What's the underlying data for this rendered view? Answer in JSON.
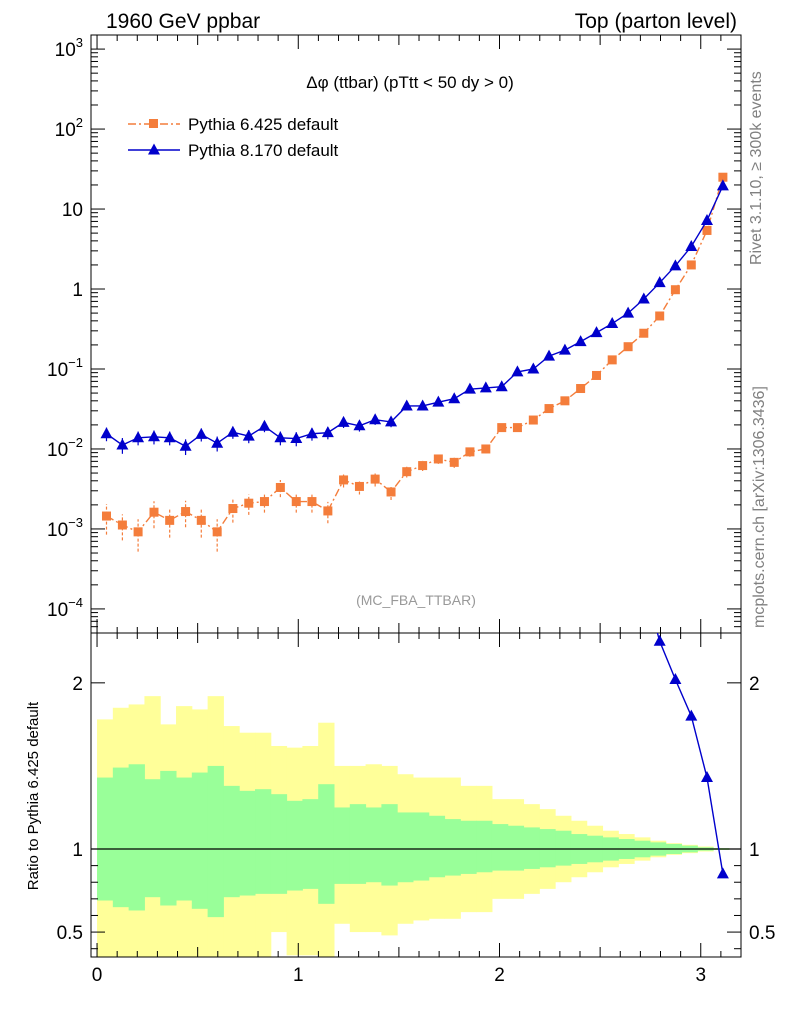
{
  "header": {
    "left": "1960 GeV ppbar",
    "right": "Top (parton level)"
  },
  "side_labels": {
    "rivet": "Rivet 3.1.10, ≥ 300k events",
    "mcplots": "mcplots.cern.ch [arXiv:1306.3436]"
  },
  "chart_data": [
    {
      "type": "line",
      "title": "Δφ (ttbar) (pTtt < 50 dy > 0)",
      "watermark": "(MC_FBA_TTBAR)",
      "xlabel": "",
      "ylabel": "",
      "yscale": "log",
      "xlim": [
        -0.03,
        3.2
      ],
      "ylim": [
        5e-05,
        1500
      ],
      "x_ticks": [
        0,
        1,
        2,
        3
      ],
      "y_tick_labels": [
        {
          "value": 1000,
          "base": "10",
          "exp": "3"
        },
        {
          "value": 100,
          "base": "10",
          "exp": "2"
        },
        {
          "value": 10,
          "base": "10",
          "exp": ""
        },
        {
          "value": 1,
          "base": "1",
          "exp": ""
        },
        {
          "value": 0.1,
          "base": "10",
          "exp": "−1"
        },
        {
          "value": 0.01,
          "base": "10",
          "exp": "−2"
        },
        {
          "value": 0.001,
          "base": "10",
          "exp": "−3"
        },
        {
          "value": 0.0001,
          "base": "10",
          "exp": "−4"
        }
      ],
      "legend_position": "top-left",
      "series": [
        {
          "name": "Pythia 6.425 default",
          "color": "#f47d3b",
          "marker": "square",
          "line": "dash-dot",
          "x": [
            0.047,
            0.126,
            0.204,
            0.283,
            0.361,
            0.44,
            0.518,
            0.597,
            0.675,
            0.754,
            0.832,
            0.911,
            0.99,
            1.068,
            1.147,
            1.225,
            1.304,
            1.382,
            1.461,
            1.539,
            1.618,
            1.696,
            1.775,
            1.853,
            1.932,
            2.011,
            2.089,
            2.168,
            2.246,
            2.325,
            2.403,
            2.482,
            2.56,
            2.639,
            2.717,
            2.796,
            2.874,
            2.953,
            3.031,
            3.11
          ],
          "y": [
            0.00145,
            0.00112,
            0.00092,
            0.00162,
            0.00128,
            0.00165,
            0.00128,
            0.00092,
            0.0018,
            0.0021,
            0.0022,
            0.0033,
            0.0022,
            0.0022,
            0.00168,
            0.0041,
            0.0034,
            0.0042,
            0.0029,
            0.0052,
            0.0062,
            0.0075,
            0.0068,
            0.0092,
            0.01,
            0.0185,
            0.0185,
            0.023,
            0.032,
            0.04,
            0.057,
            0.083,
            0.13,
            0.19,
            0.28,
            0.46,
            0.98,
            2.0,
            5.4,
            25
          ],
          "err": [
            0.0006,
            0.0004,
            0.0004,
            0.0006,
            0.0005,
            0.0006,
            0.0005,
            0.0004,
            0.0006,
            0.0006,
            0.0006,
            0.0008,
            0.0006,
            0.0006,
            0.0005,
            0.0008,
            0.0007,
            0.0008,
            0.0006,
            0.0008,
            0.0009,
            0.001,
            0.001,
            0.0012,
            0.0012,
            0.0016,
            0.0016,
            0.0018,
            0.002,
            0.0022,
            0.003,
            0.004,
            0.005,
            0.006,
            0.008,
            0.012,
            0.02,
            0.04,
            0.1,
            0.4
          ]
        },
        {
          "name": "Pythia 8.170 default",
          "color": "#0000cc",
          "marker": "triangle",
          "line": "solid",
          "x": [
            0.047,
            0.126,
            0.204,
            0.283,
            0.361,
            0.44,
            0.518,
            0.597,
            0.675,
            0.754,
            0.832,
            0.911,
            0.99,
            1.068,
            1.147,
            1.225,
            1.304,
            1.382,
            1.461,
            1.539,
            1.618,
            1.696,
            1.775,
            1.853,
            1.932,
            2.011,
            2.089,
            2.168,
            2.246,
            2.325,
            2.403,
            2.482,
            2.56,
            2.639,
            2.717,
            2.796,
            2.874,
            2.953,
            3.031,
            3.11
          ],
          "y": [
            0.0155,
            0.0112,
            0.0138,
            0.0142,
            0.0138,
            0.0108,
            0.0152,
            0.0118,
            0.0162,
            0.0145,
            0.0192,
            0.0138,
            0.0135,
            0.0155,
            0.016,
            0.0215,
            0.0195,
            0.0232,
            0.0218,
            0.0345,
            0.0345,
            0.0385,
            0.0425,
            0.056,
            0.058,
            0.06,
            0.092,
            0.1,
            0.145,
            0.172,
            0.22,
            0.285,
            0.37,
            0.5,
            0.75,
            1.2,
            1.95,
            3.4,
            7.2,
            19.5
          ],
          "err": [
            0.003,
            0.0025,
            0.0027,
            0.0028,
            0.0027,
            0.0024,
            0.0028,
            0.0025,
            0.0028,
            0.0027,
            0.003,
            0.0027,
            0.0027,
            0.0028,
            0.0028,
            0.0032,
            0.003,
            0.0032,
            0.0031,
            0.0038,
            0.0038,
            0.004,
            0.0042,
            0.0048,
            0.0049,
            0.005,
            0.006,
            0.0065,
            0.008,
            0.009,
            0.01,
            0.012,
            0.014,
            0.018,
            0.025,
            0.035,
            0.05,
            0.08,
            0.15,
            0.35
          ]
        }
      ]
    },
    {
      "type": "line",
      "title": "",
      "xlabel": "",
      "ylabel": "Ratio to Pythia 6.425 default",
      "xlim": [
        -0.03,
        3.2
      ],
      "ylim": [
        0.35,
        2.3
      ],
      "x_ticks": [
        0,
        1,
        2,
        3
      ],
      "y_ticks": [
        0.5,
        1,
        2
      ],
      "y_tick_labels": [
        "0.5",
        "1",
        "2"
      ],
      "reference_line": 1,
      "band_edges": [
        0.0,
        0.0785,
        0.157,
        0.2355,
        0.314,
        0.3925,
        0.471,
        0.5495,
        0.628,
        0.7065,
        0.785,
        0.8635,
        0.942,
        1.0205,
        1.099,
        1.1775,
        1.256,
        1.3345,
        1.413,
        1.4915,
        1.57,
        1.6485,
        1.727,
        1.8055,
        1.884,
        1.9625,
        2.041,
        2.1195,
        2.198,
        2.2765,
        2.355,
        2.4335,
        2.512,
        2.5905,
        2.669,
        2.7475,
        2.826,
        2.9045,
        2.983,
        3.0615,
        3.14
      ],
      "bands": [
        {
          "color": "#ffff99",
          "lower": [
            0.3,
            0.3,
            0.3,
            0.3,
            0.3,
            0.3,
            0.3,
            0.3,
            0.3,
            0.35,
            0.35,
            0.5,
            0.36,
            0.36,
            0.3,
            0.55,
            0.5,
            0.5,
            0.48,
            0.55,
            0.57,
            0.58,
            0.58,
            0.62,
            0.62,
            0.7,
            0.7,
            0.73,
            0.76,
            0.8,
            0.83,
            0.86,
            0.89,
            0.91,
            0.93,
            0.95,
            0.965,
            0.975,
            0.985,
            0.995
          ],
          "upper": [
            1.78,
            1.85,
            1.87,
            1.92,
            1.75,
            1.86,
            1.84,
            1.92,
            1.74,
            1.7,
            1.7,
            1.62,
            1.61,
            1.62,
            1.76,
            1.5,
            1.5,
            1.51,
            1.5,
            1.45,
            1.43,
            1.43,
            1.43,
            1.38,
            1.38,
            1.3,
            1.3,
            1.27,
            1.24,
            1.2,
            1.17,
            1.14,
            1.11,
            1.09,
            1.07,
            1.05,
            1.035,
            1.025,
            1.015,
            1.005
          ]
        },
        {
          "color": "#99ff99",
          "lower": [
            0.69,
            0.65,
            0.63,
            0.71,
            0.66,
            0.69,
            0.64,
            0.59,
            0.71,
            0.72,
            0.73,
            0.73,
            0.75,
            0.76,
            0.67,
            0.79,
            0.79,
            0.8,
            0.78,
            0.8,
            0.81,
            0.83,
            0.84,
            0.85,
            0.86,
            0.87,
            0.87,
            0.88,
            0.89,
            0.9,
            0.91,
            0.92,
            0.93,
            0.94,
            0.95,
            0.96,
            0.97,
            0.98,
            0.99,
            0.995
          ],
          "upper": [
            1.43,
            1.49,
            1.51,
            1.42,
            1.47,
            1.43,
            1.46,
            1.5,
            1.38,
            1.35,
            1.36,
            1.33,
            1.29,
            1.3,
            1.39,
            1.25,
            1.27,
            1.25,
            1.27,
            1.22,
            1.22,
            1.2,
            1.18,
            1.17,
            1.17,
            1.15,
            1.14,
            1.13,
            1.12,
            1.11,
            1.09,
            1.08,
            1.07,
            1.06,
            1.05,
            1.04,
            1.03,
            1.02,
            1.01,
            1.005
          ]
        }
      ],
      "series": [
        {
          "name": "Pythia 8.170 default",
          "color": "#0000cc",
          "marker": "triangle",
          "x": [
            2.717,
            2.796,
            2.874,
            2.953,
            3.031,
            3.11
          ],
          "y": [
            2.6,
            2.25,
            2.02,
            1.8,
            1.43,
            0.85
          ]
        }
      ]
    }
  ]
}
